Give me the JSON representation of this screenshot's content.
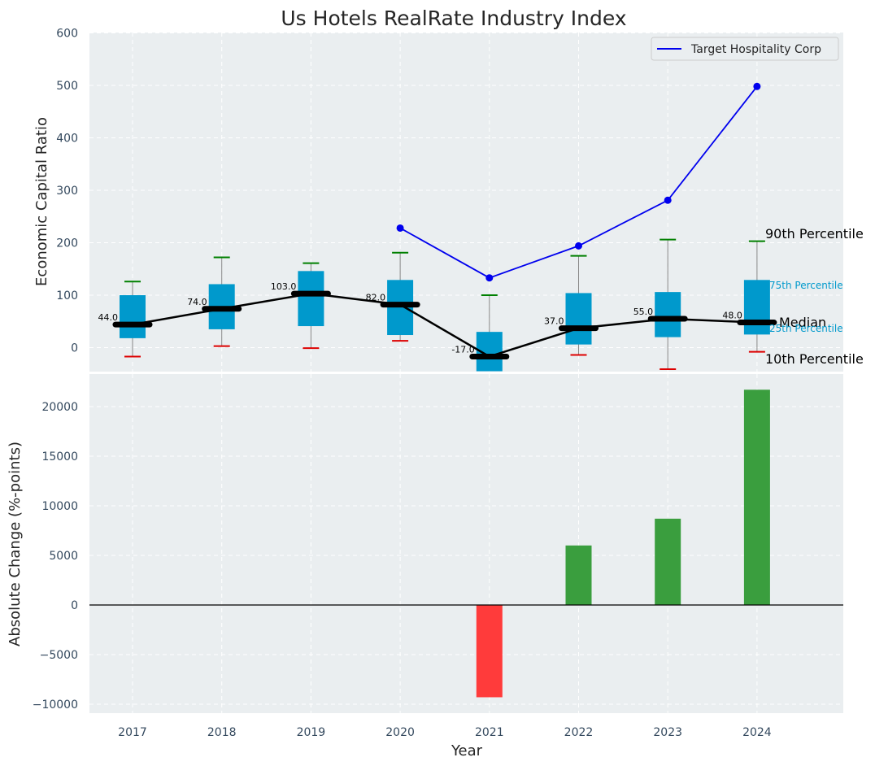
{
  "chart_data": [
    {
      "type": "box",
      "title": "Us Hotels RealRate Industry Index",
      "xlabel": "",
      "ylabel": "Economic Capital Ratio",
      "ylim": [
        -45,
        600
      ],
      "yticks": [
        0,
        100,
        200,
        300,
        400,
        500,
        600
      ],
      "categories": [
        "2017",
        "2018",
        "2019",
        "2020",
        "2021",
        "2022",
        "2023",
        "2024"
      ],
      "boxes": [
        {
          "year": "2017",
          "p10": -17,
          "p25": 18,
          "median": 44,
          "p75": 100,
          "p90": 126,
          "label": "44.0"
        },
        {
          "year": "2018",
          "p10": 3,
          "p25": 35,
          "median": 74,
          "p75": 121,
          "p90": 172,
          "label": "74.0"
        },
        {
          "year": "2019",
          "p10": -1,
          "p25": 41,
          "median": 103,
          "p75": 146,
          "p90": 161,
          "label": "103.0"
        },
        {
          "year": "2020",
          "p10": 13,
          "p25": 24,
          "median": 82,
          "p75": 129,
          "p90": 181,
          "label": "82.0"
        },
        {
          "year": "2021",
          "p10": -17,
          "p25": -45,
          "median": -17,
          "p75": 30,
          "p90": 100,
          "label": "-17.0"
        },
        {
          "year": "2022",
          "p10": -14,
          "p25": 6,
          "median": 37,
          "p75": 104,
          "p90": 175,
          "label": "37.0"
        },
        {
          "year": "2023",
          "p10": -41,
          "p25": 20,
          "median": 55,
          "p75": 106,
          "p90": 206,
          "label": "55.0"
        },
        {
          "year": "2024",
          "p10": -8,
          "p25": 25,
          "median": 48,
          "p75": 129,
          "p90": 203,
          "label": "48.0"
        }
      ],
      "series": [
        {
          "name": "Target Hospitality Corp",
          "color": "#0000ee",
          "x": [
            "2020",
            "2021",
            "2022",
            "2023",
            "2024"
          ],
          "values": [
            228,
            133,
            194,
            281,
            498
          ]
        }
      ],
      "legend": "top-right",
      "annotations": {
        "p90": "90th Percentile",
        "p75": "75th Percentile",
        "median": "Median",
        "p25": "25th Percentile",
        "p10": "10th Percentile"
      },
      "colors": {
        "box": "#0099cc",
        "median": "#000000",
        "p90_cap": "#008000",
        "p10_cap": "#dd0000",
        "background": "#eaeef0"
      }
    },
    {
      "type": "bar",
      "xlabel": "Year",
      "ylabel": "Absolute Change (%-points)",
      "ylim": [
        -10800,
        23000
      ],
      "yticks": [
        -10000,
        -5000,
        0,
        5000,
        10000,
        15000,
        20000
      ],
      "categories": [
        "2017",
        "2018",
        "2019",
        "2020",
        "2021",
        "2022",
        "2023",
        "2024"
      ],
      "values": [
        0,
        0,
        0,
        0,
        -9300,
        6000,
        8700,
        21700
      ],
      "colors": {
        "positive": "#3a9e3e",
        "negative": "#ff3b3b"
      }
    }
  ]
}
